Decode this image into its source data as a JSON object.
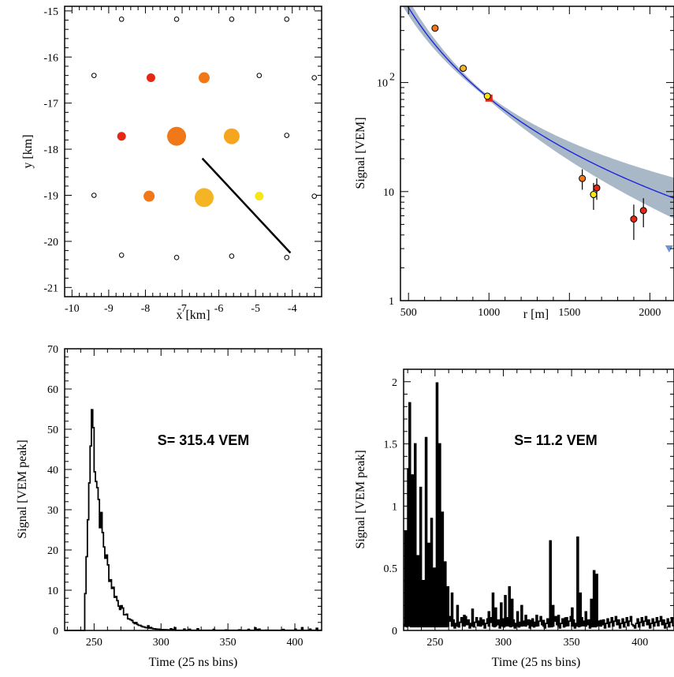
{
  "chart_data": [
    {
      "type": "scatter",
      "xlabel": "x [km]",
      "ylabel": "y [km]",
      "xlim": [
        -10.2,
        -3.2
      ],
      "ylim": [
        -21.2,
        -14.9
      ],
      "xticks": [
        "-10",
        "-9",
        "-8",
        "-7",
        "-6",
        "-5",
        "-4"
      ],
      "yticks": [
        "-15",
        "-16",
        "-17",
        "-18",
        "-19",
        "-20",
        "-21"
      ],
      "silent_stations": [
        {
          "x": -8.65,
          "y": -15.18
        },
        {
          "x": -7.15,
          "y": -15.18
        },
        {
          "x": -5.65,
          "y": -15.18
        },
        {
          "x": -4.15,
          "y": -15.18
        },
        {
          "x": -9.4,
          "y": -16.4
        },
        {
          "x": -4.9,
          "y": -16.4
        },
        {
          "x": -3.4,
          "y": -16.45
        },
        {
          "x": -4.15,
          "y": -17.7
        },
        {
          "x": -9.4,
          "y": -19.0
        },
        {
          "x": -3.4,
          "y": -19.02
        },
        {
          "x": -8.65,
          "y": -20.3
        },
        {
          "x": -7.15,
          "y": -20.35
        },
        {
          "x": -5.65,
          "y": -20.32
        },
        {
          "x": -4.15,
          "y": -20.35
        }
      ],
      "hit_stations": [
        {
          "x": -7.85,
          "y": -16.45,
          "color": "#e52814",
          "size": 1
        },
        {
          "x": -6.4,
          "y": -16.45,
          "color": "#f07819",
          "size": 2
        },
        {
          "x": -8.65,
          "y": -17.72,
          "color": "#e52814",
          "size": 1
        },
        {
          "x": -7.15,
          "y": -17.72,
          "color": "#f07819",
          "size": 4
        },
        {
          "x": -5.65,
          "y": -17.72,
          "color": "#f5a51e",
          "size": 3
        },
        {
          "x": -7.9,
          "y": -19.02,
          "color": "#f07819",
          "size": 2
        },
        {
          "x": -6.4,
          "y": -19.05,
          "color": "#f5b423",
          "size": 4
        },
        {
          "x": -4.9,
          "y": -19.02,
          "color": "#f5e614",
          "size": 1
        }
      ],
      "shower_axis": {
        "x": [
          -6.45,
          -4.05
        ],
        "y": [
          -18.2,
          -20.25
        ]
      }
    },
    {
      "type": "scatter",
      "xlabel": "r [m]",
      "ylabel": "Signal [VEM]",
      "xlim": [
        450,
        2150
      ],
      "ylim": [
        1,
        500
      ],
      "log_y": true,
      "xticks": [
        "500",
        "1000",
        "1500",
        "2000"
      ],
      "yticks": [
        "1",
        "10",
        "10^2"
      ],
      "points": [
        {
          "x": 665,
          "y": 315,
          "err": 0,
          "color": "#f07819"
        },
        {
          "x": 840,
          "y": 135,
          "err": 0,
          "color": "#f5b423"
        },
        {
          "x": 990,
          "y": 75,
          "err": 0,
          "color": "#f5e614"
        },
        {
          "x": 1580,
          "y": 13.2,
          "err": 2.8,
          "color": "#f07819"
        },
        {
          "x": 1670,
          "y": 10.8,
          "err": 2.4,
          "color": "#e52814"
        },
        {
          "x": 1650,
          "y": 9.4,
          "err": 2.6,
          "color": "#f5e614"
        },
        {
          "x": 1900,
          "y": 5.6,
          "err": 2.0,
          "color": "#e52814"
        },
        {
          "x": 1960,
          "y": 6.7,
          "err": 2.0,
          "color": "#e52814"
        }
      ],
      "saturated_marker": {
        "x": 1000,
        "y": 72
      },
      "upper_limit_marker": {
        "x": 2120,
        "y": 3.0
      },
      "fit": {
        "S1000": 72,
        "beta": 2.3
      },
      "band_color": "#8ca0b4",
      "line_color": "#1e28dc"
    },
    {
      "type": "area",
      "xlabel": "Time  (25 ns bins)",
      "ylabel": "Signal [VEM peak]",
      "xlim": [
        228,
        420
      ],
      "ylim": [
        0,
        70
      ],
      "xticks": [
        "250",
        "300",
        "350",
        "400"
      ],
      "yticks": [
        "0",
        "10",
        "20",
        "30",
        "40",
        "50",
        "60",
        "70"
      ],
      "annotation": "S= 315.4 VEM",
      "shape": {
        "start": 243,
        "rise_to": 248,
        "peak": 55,
        "tau": 9.5
      }
    },
    {
      "type": "area",
      "xlabel": "Time (25 ns bins)",
      "ylabel": "Signal [VEM peak]",
      "xlim": [
        227,
        425
      ],
      "ylim": [
        0,
        2.1
      ],
      "xticks": [
        "250",
        "300",
        "350",
        "400"
      ],
      "yticks": [
        "0",
        "0.5",
        "1",
        "1.5",
        "2"
      ],
      "annotation": "S= 11.2 VEM",
      "spikes": [
        {
          "t": 228,
          "v": 0.8
        },
        {
          "t": 230,
          "v": 1.3
        },
        {
          "t": 231,
          "v": 1.83
        },
        {
          "t": 233,
          "v": 1.25
        },
        {
          "t": 235,
          "v": 1.5
        },
        {
          "t": 237,
          "v": 0.6
        },
        {
          "t": 239,
          "v": 1.15
        },
        {
          "t": 241,
          "v": 0.4
        },
        {
          "t": 243,
          "v": 1.55
        },
        {
          "t": 245,
          "v": 0.7
        },
        {
          "t": 247,
          "v": 0.9
        },
        {
          "t": 249,
          "v": 0.5
        },
        {
          "t": 251,
          "v": 1.99
        },
        {
          "t": 253,
          "v": 1.5
        },
        {
          "t": 255,
          "v": 0.95
        },
        {
          "t": 257,
          "v": 0.55
        },
        {
          "t": 259,
          "v": 0.35
        },
        {
          "t": 262,
          "v": 0.3
        },
        {
          "t": 266,
          "v": 0.2
        },
        {
          "t": 271,
          "v": 0.12
        },
        {
          "t": 277,
          "v": 0.17
        },
        {
          "t": 283,
          "v": 0.1
        },
        {
          "t": 289,
          "v": 0.15
        },
        {
          "t": 292,
          "v": 0.3
        },
        {
          "t": 294,
          "v": 0.18
        },
        {
          "t": 298,
          "v": 0.22
        },
        {
          "t": 301,
          "v": 0.28
        },
        {
          "t": 304,
          "v": 0.35
        },
        {
          "t": 306,
          "v": 0.25
        },
        {
          "t": 310,
          "v": 0.15
        },
        {
          "t": 313,
          "v": 0.2
        },
        {
          "t": 316,
          "v": 0.12
        },
        {
          "t": 320,
          "v": 0.08
        },
        {
          "t": 324,
          "v": 0.12
        },
        {
          "t": 329,
          "v": 0.08
        },
        {
          "t": 334,
          "v": 0.72
        },
        {
          "t": 336,
          "v": 0.2
        },
        {
          "t": 340,
          "v": 0.12
        },
        {
          "t": 345,
          "v": 0.1
        },
        {
          "t": 350,
          "v": 0.18
        },
        {
          "t": 354,
          "v": 0.75
        },
        {
          "t": 356,
          "v": 0.3
        },
        {
          "t": 360,
          "v": 0.15
        },
        {
          "t": 364,
          "v": 0.25
        },
        {
          "t": 366,
          "v": 0.48
        },
        {
          "t": 368,
          "v": 0.45
        },
        {
          "t": 371,
          "v": 0.08
        },
        {
          "t": 380,
          "v": 0.05
        },
        {
          "t": 395,
          "v": 0.04
        },
        {
          "t": 410,
          "v": 0.04
        }
      ]
    }
  ]
}
